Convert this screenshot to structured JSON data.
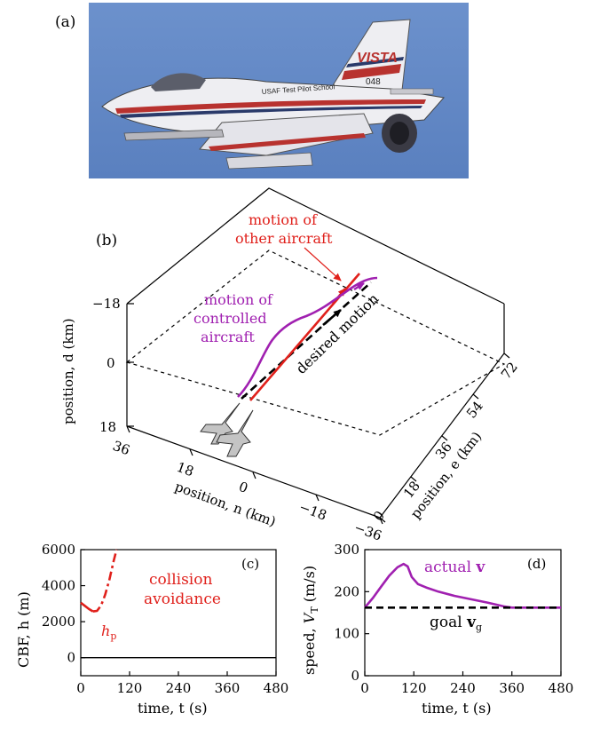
{
  "panel_labels": {
    "a": "(a)",
    "b": "(b)",
    "c": "(c)",
    "d": "(d)"
  },
  "photo": {
    "tail_text": "VISTA",
    "tail_number": "048",
    "fuselage_text": "USAF Test Pilot School",
    "colors": {
      "sky": "#5f86c4",
      "jet_body": "#f1f1f4",
      "stripe_red": "#b8322f",
      "stripe_blue": "#2a3a6a",
      "jet_dark": "#3a3a44"
    }
  },
  "panel_b": {
    "annotations": {
      "other_line1": "motion of",
      "other_line2": "other aircraft",
      "controlled_line1": "motion of",
      "controlled_line2": "controlled",
      "controlled_line3": "aircraft",
      "desired": "desired motion"
    },
    "axes": {
      "d_label": "position, d (km)",
      "n_label": "position, n (km)",
      "e_label": "position, e (km)",
      "d_ticks": [
        "−18",
        "0",
        "18"
      ],
      "n_ticks": [
        "36",
        "18",
        "0",
        "−18",
        "−36"
      ],
      "e_ticks": [
        "0",
        "18",
        "36",
        "54",
        "72"
      ]
    },
    "colors": {
      "other": "#e0201b",
      "controlled": "#a020b0",
      "desired": "#000000",
      "aircraft": "#b8b8b8"
    }
  },
  "chart_data": [
    {
      "type": "line",
      "panel": "c",
      "xlabel": "time, t (s)",
      "ylabel": "CBF, h (m)",
      "xlim": [
        0,
        480
      ],
      "ylim": [
        -1000,
        6000
      ],
      "x_ticks": [
        "0",
        "120",
        "240",
        "360",
        "480"
      ],
      "y_ticks": [
        "0",
        "2000",
        "4000",
        "6000"
      ],
      "annotations": [
        "collision",
        "avoidance",
        "h_p"
      ],
      "series": [
        {
          "style": "solid",
          "color": "#e0201b",
          "x": [
            0,
            10,
            20,
            30
          ],
          "y": [
            3050,
            2880,
            2700,
            2570
          ]
        },
        {
          "style": "dashdot",
          "color": "#e0201b",
          "x": [
            30,
            40,
            50,
            60,
            70,
            80,
            88
          ],
          "y": [
            2570,
            2600,
            2900,
            3500,
            4300,
            5300,
            6000
          ]
        },
        {
          "style": "solid",
          "color": "#000000",
          "x": [
            0,
            480
          ],
          "y": [
            0,
            0
          ]
        }
      ]
    },
    {
      "type": "line",
      "panel": "d",
      "xlabel": "time, t (s)",
      "ylabel": "speed, V_T (m/s)",
      "xlim": [
        0,
        480
      ],
      "ylim": [
        0,
        300
      ],
      "x_ticks": [
        "0",
        "120",
        "240",
        "360",
        "480"
      ],
      "y_ticks": [
        "0",
        "100",
        "200",
        "300"
      ],
      "series": [
        {
          "name": "actual v",
          "style": "solid",
          "color": "#a020b0",
          "x": [
            0,
            20,
            40,
            60,
            80,
            95,
            105,
            115,
            130,
            150,
            180,
            220,
            260,
            300,
            340,
            360,
            480
          ],
          "y": [
            162,
            185,
            212,
            238,
            258,
            266,
            260,
            235,
            218,
            210,
            200,
            190,
            182,
            174,
            165,
            162,
            162
          ]
        },
        {
          "name": "goal v_g",
          "style": "dashed",
          "color": "#000000",
          "x": [
            0,
            480
          ],
          "y": [
            162,
            162
          ]
        }
      ]
    }
  ]
}
